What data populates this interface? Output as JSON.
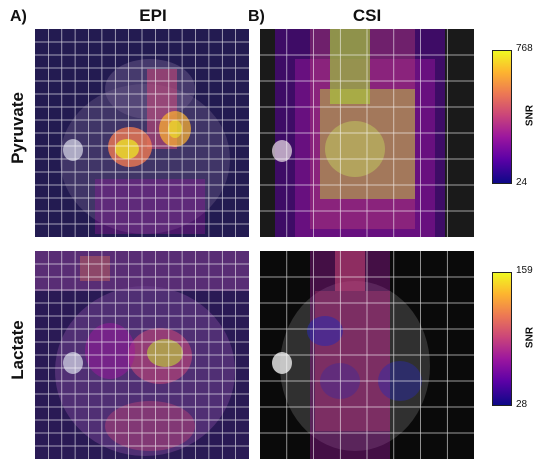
{
  "panels": {
    "a_label": "A)",
    "b_label": "B)",
    "col_epi": "EPI",
    "col_csi": "CSI",
    "row_pyruvate": "Pyruvate",
    "row_lactate": "Lactate"
  },
  "colorbars": {
    "pyruvate": {
      "max": "768",
      "min": "24",
      "label": "SNR"
    },
    "lactate": {
      "max": "159",
      "min": "28",
      "label": "SNR"
    }
  },
  "colors": {
    "low": "#0d0887",
    "mid": "#cc4778",
    "high": "#f0f921",
    "grid": "#ffffff"
  }
}
